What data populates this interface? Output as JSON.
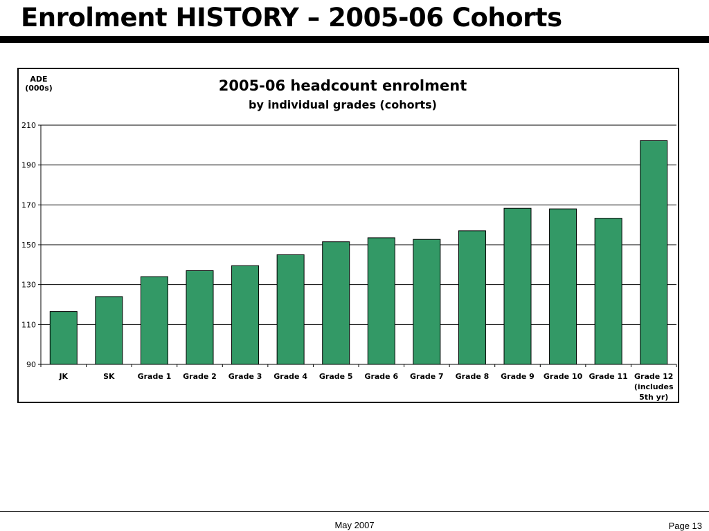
{
  "slide": {
    "title": "Enrolment HISTORY – 2005-06 Cohorts",
    "footer_date": "May 2007",
    "footer_page": "Page 13"
  },
  "colors": {
    "bar_fill": "#339966",
    "bar_stroke": "#000000",
    "gridline": "#000000"
  },
  "chart_data": {
    "type": "bar",
    "title": "2005-06 headcount enrolment",
    "subtitle": "by individual grades (cohorts)",
    "ylabel": [
      "ADE",
      "(000s)"
    ],
    "xlabel": "",
    "categories": [
      [
        "JK"
      ],
      [
        "SK"
      ],
      [
        "Grade 1"
      ],
      [
        "Grade 2"
      ],
      [
        "Grade 3"
      ],
      [
        "Grade 4"
      ],
      [
        "Grade 5"
      ],
      [
        "Grade 6"
      ],
      [
        "Grade 7"
      ],
      [
        "Grade 8"
      ],
      [
        "Grade 9"
      ],
      [
        "Grade 10"
      ],
      [
        "Grade 11"
      ],
      [
        "Grade 12",
        "(includes",
        "5th yr)"
      ]
    ],
    "values": [
      116.5,
      124,
      134,
      137,
      139.5,
      145,
      151.5,
      153.5,
      152.7,
      157,
      168.3,
      168,
      163.3,
      202.2
    ],
    "ylim": [
      90,
      210
    ],
    "yticks": [
      90,
      110,
      130,
      150,
      170,
      190,
      210
    ],
    "grid": true,
    "legend": "none"
  }
}
